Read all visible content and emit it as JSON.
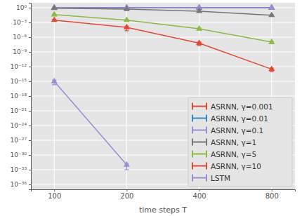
{
  "chart_data": {
    "type": "line",
    "x_label": "time steps T",
    "x": [
      100,
      200,
      400,
      800
    ],
    "xlim": [
      80,
      1000
    ],
    "xticks": [
      100,
      200,
      400,
      800
    ],
    "ylim": [
      1e-37,
      10
    ],
    "yticks": [
      {
        "value": 1,
        "label": "10⁰"
      },
      {
        "value": 0.001,
        "label": "10⁻³"
      },
      {
        "value": 1e-06,
        "label": "10⁻⁶"
      },
      {
        "value": 1e-09,
        "label": "10⁻⁹"
      },
      {
        "value": 1e-12,
        "label": "10⁻¹²"
      },
      {
        "value": 1e-15,
        "label": "10⁻¹⁵"
      },
      {
        "value": 1e-18,
        "label": "10⁻¹⁸"
      },
      {
        "value": 1e-21,
        "label": "10⁻²¹"
      },
      {
        "value": 1e-24,
        "label": "10⁻²⁴"
      },
      {
        "value": 1e-27,
        "label": "10⁻²⁷"
      },
      {
        "value": 1e-30,
        "label": "10⁻³⁰"
      },
      {
        "value": 1e-33,
        "label": "10⁻³³"
      },
      {
        "value": 1e-36,
        "label": "10⁻³⁶"
      }
    ],
    "log": true,
    "grid": true,
    "legend": "lower right",
    "marker": "triangle",
    "series": [
      {
        "name": "ASRNN, γ=0.001",
        "color": "#E24A33",
        "values": [
          1,
          1,
          1,
          1
        ],
        "errors": [
          0.05,
          0.05,
          0.05,
          0.05
        ]
      },
      {
        "name": "ASRNN, γ=0.01",
        "color": "#348ABD",
        "values": [
          1,
          1,
          1,
          1
        ],
        "errors": [
          0.05,
          0.05,
          0.05,
          0.05
        ]
      },
      {
        "name": "ASRNN, γ=0.1",
        "color": "#988ED5",
        "values": [
          1,
          1,
          1,
          1
        ],
        "errors": [
          0.05,
          0.05,
          0.05,
          0.05
        ]
      },
      {
        "name": "ASRNN, γ=1",
        "color": "#777777",
        "values": [
          0.8,
          0.5,
          0.2,
          0.03
        ],
        "errors": [
          0.1,
          0.1,
          0.05,
          0.01
        ]
      },
      {
        "name": "ASRNN, γ=5",
        "color": "#8EBA42",
        "values": [
          0.04,
          0.003,
          5e-05,
          1e-07
        ],
        "errors": [
          0.01,
          0.001,
          2e-05,
          5e-08
        ]
      },
      {
        "name": "ASRNN, γ=10",
        "color": "#E24A33",
        "values": [
          0.003,
          0.0001,
          6e-08,
          3e-13
        ],
        "errors": [
          0.001,
          8e-05,
          4e-08,
          2e-13
        ]
      },
      {
        "name": "LSTM",
        "color": "#988ED5",
        "values": [
          1e-15,
          1e-32,
          null,
          null
        ],
        "errors": [
          8e-16,
          9e-33,
          null,
          null
        ]
      }
    ]
  }
}
